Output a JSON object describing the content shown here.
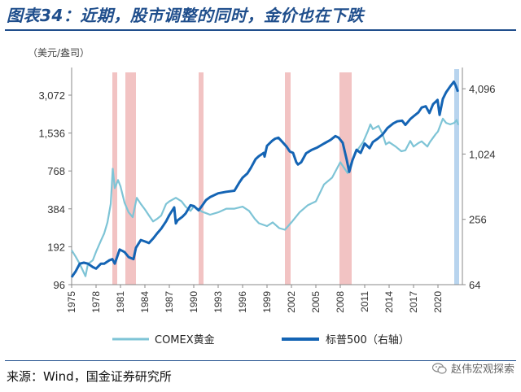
{
  "page": {
    "title": "图表34：近期，股市调整的同时，金价也在下跌",
    "source": "来源：Wind，国金证券研究所",
    "watermark": "赵伟宏观探索",
    "watermark_icon": "wechat-icon"
  },
  "chart_data": {
    "type": "line",
    "ylabel": "（美元/盎司）",
    "left_axis": {
      "label": "（美元/盎司）",
      "scale": "log2",
      "ticks": [
        96,
        192,
        384,
        768,
        1536,
        3072
      ],
      "tick_labels": [
        "96",
        "192",
        "384",
        "768",
        "1,536",
        "3,072"
      ],
      "range": [
        96,
        4800
      ]
    },
    "right_axis": {
      "scale": "log2",
      "ticks": [
        64,
        256,
        1024,
        4096
      ],
      "tick_labels": [
        "64",
        "256",
        "1,024",
        "4,096"
      ],
      "range": [
        64,
        6000
      ]
    },
    "x_axis": {
      "range": [
        1975,
        2023
      ],
      "ticks": [
        1975,
        1978,
        1981,
        1984,
        1987,
        1990,
        1993,
        1996,
        1999,
        2002,
        2005,
        2008,
        2011,
        2014,
        2017,
        2020
      ],
      "tick_labels": [
        "1975",
        "1978",
        "1981",
        "1984",
        "1987",
        "1990",
        "1993",
        "1996",
        "1999",
        "2002",
        "2005",
        "2008",
        "2011",
        "2014",
        "2017",
        "2020"
      ]
    },
    "recession_bands": [
      [
        1980.0,
        1980.6
      ],
      [
        1981.6,
        1982.9
      ],
      [
        1990.6,
        1991.2
      ],
      [
        2001.2,
        2001.9
      ],
      [
        2007.9,
        2009.4
      ]
    ],
    "recent_band": [
      2022.0,
      2022.6
    ],
    "colors": {
      "gold": "#7ec4d6",
      "spx": "#1464b4",
      "recession": "#f2c3c3",
      "recent": "#b8d4ee"
    },
    "legend_position": "bottom",
    "series": [
      {
        "name": "COMEX黄金",
        "axis": "left",
        "points": [
          [
            1975.0,
            180
          ],
          [
            1975.5,
            160
          ],
          [
            1976.0,
            140
          ],
          [
            1976.7,
            112
          ],
          [
            1977.0,
            140
          ],
          [
            1977.6,
            150
          ],
          [
            1978.0,
            175
          ],
          [
            1978.6,
            215
          ],
          [
            1979.0,
            245
          ],
          [
            1979.4,
            300
          ],
          [
            1979.8,
            420
          ],
          [
            1980.05,
            800
          ],
          [
            1980.3,
            560
          ],
          [
            1980.7,
            650
          ],
          [
            1981.0,
            580
          ],
          [
            1981.5,
            430
          ],
          [
            1982.0,
            360
          ],
          [
            1982.5,
            330
          ],
          [
            1983.0,
            470
          ],
          [
            1983.5,
            420
          ],
          [
            1984.0,
            380
          ],
          [
            1984.5,
            340
          ],
          [
            1985.0,
            305
          ],
          [
            1985.5,
            320
          ],
          [
            1986.0,
            340
          ],
          [
            1986.6,
            420
          ],
          [
            1987.0,
            440
          ],
          [
            1987.8,
            470
          ],
          [
            1988.5,
            440
          ],
          [
            1989.0,
            400
          ],
          [
            1989.6,
            370
          ],
          [
            1990.0,
            400
          ],
          [
            1990.6,
            380
          ],
          [
            1991.0,
            365
          ],
          [
            1992.0,
            345
          ],
          [
            1993.0,
            360
          ],
          [
            1994.0,
            385
          ],
          [
            1995.0,
            385
          ],
          [
            1996.0,
            400
          ],
          [
            1996.8,
            370
          ],
          [
            1997.5,
            320
          ],
          [
            1998.0,
            295
          ],
          [
            1999.0,
            280
          ],
          [
            1999.7,
            300
          ],
          [
            2000.5,
            270
          ],
          [
            2001.2,
            262
          ],
          [
            2002.0,
            300
          ],
          [
            2003.0,
            360
          ],
          [
            2004.0,
            410
          ],
          [
            2005.0,
            440
          ],
          [
            2006.0,
            600
          ],
          [
            2007.0,
            680
          ],
          [
            2008.0,
            900
          ],
          [
            2008.9,
            740
          ],
          [
            2009.5,
            950
          ],
          [
            2010.0,
            1100
          ],
          [
            2010.8,
            1300
          ],
          [
            2011.4,
            1600
          ],
          [
            2011.7,
            1800
          ],
          [
            2012.0,
            1650
          ],
          [
            2012.7,
            1750
          ],
          [
            2013.2,
            1500
          ],
          [
            2013.6,
            1250
          ],
          [
            2014.0,
            1300
          ],
          [
            2014.8,
            1200
          ],
          [
            2015.5,
            1100
          ],
          [
            2016.0,
            1120
          ],
          [
            2016.6,
            1330
          ],
          [
            2017.0,
            1200
          ],
          [
            2017.6,
            1280
          ],
          [
            2018.0,
            1320
          ],
          [
            2018.7,
            1200
          ],
          [
            2019.0,
            1300
          ],
          [
            2019.7,
            1500
          ],
          [
            2020.0,
            1580
          ],
          [
            2020.6,
            2000
          ],
          [
            2021.0,
            1850
          ],
          [
            2021.5,
            1800
          ],
          [
            2022.0,
            1850
          ],
          [
            2022.3,
            1950
          ],
          [
            2022.5,
            1780
          ]
        ]
      },
      {
        "name": "标普500（右轴）",
        "axis": "right",
        "points": [
          [
            1975.0,
            75
          ],
          [
            1975.5,
            85
          ],
          [
            1976.0,
            100
          ],
          [
            1976.5,
            102
          ],
          [
            1977.0,
            100
          ],
          [
            1977.6,
            93
          ],
          [
            1978.0,
            90
          ],
          [
            1978.6,
            100
          ],
          [
            1979.0,
            100
          ],
          [
            1979.6,
            107
          ],
          [
            1980.0,
            110
          ],
          [
            1980.3,
            100
          ],
          [
            1980.9,
            135
          ],
          [
            1981.5,
            128
          ],
          [
            1982.0,
            115
          ],
          [
            1982.6,
            110
          ],
          [
            1982.9,
            140
          ],
          [
            1983.5,
            165
          ],
          [
            1984.0,
            160
          ],
          [
            1984.5,
            155
          ],
          [
            1985.0,
            170
          ],
          [
            1985.5,
            190
          ],
          [
            1986.0,
            210
          ],
          [
            1986.6,
            245
          ],
          [
            1987.0,
            280
          ],
          [
            1987.6,
            330
          ],
          [
            1987.8,
            235
          ],
          [
            1988.0,
            250
          ],
          [
            1988.6,
            270
          ],
          [
            1989.0,
            290
          ],
          [
            1989.6,
            345
          ],
          [
            1990.0,
            340
          ],
          [
            1990.6,
            310
          ],
          [
            1991.0,
            340
          ],
          [
            1991.5,
            385
          ],
          [
            1992.0,
            410
          ],
          [
            1993.0,
            445
          ],
          [
            1994.0,
            460
          ],
          [
            1995.0,
            470
          ],
          [
            1995.6,
            560
          ],
          [
            1996.0,
            620
          ],
          [
            1996.6,
            680
          ],
          [
            1997.0,
            760
          ],
          [
            1997.6,
            920
          ],
          [
            1998.0,
            980
          ],
          [
            1998.6,
            1050
          ],
          [
            1998.7,
            970
          ],
          [
            1999.0,
            1220
          ],
          [
            1999.6,
            1350
          ],
          [
            2000.0,
            1420
          ],
          [
            2000.4,
            1450
          ],
          [
            2000.9,
            1320
          ],
          [
            2001.4,
            1200
          ],
          [
            2001.8,
            1080
          ],
          [
            2002.2,
            1050
          ],
          [
            2002.6,
            860
          ],
          [
            2002.8,
            820
          ],
          [
            2003.2,
            860
          ],
          [
            2003.8,
            1040
          ],
          [
            2004.5,
            1120
          ],
          [
            2005.2,
            1180
          ],
          [
            2006.0,
            1280
          ],
          [
            2006.8,
            1380
          ],
          [
            2007.4,
            1500
          ],
          [
            2007.8,
            1450
          ],
          [
            2008.3,
            1300
          ],
          [
            2008.8,
            900
          ],
          [
            2009.1,
            700
          ],
          [
            2009.5,
            900
          ],
          [
            2010.0,
            1120
          ],
          [
            2010.5,
            1050
          ],
          [
            2011.0,
            1280
          ],
          [
            2011.6,
            1160
          ],
          [
            2012.0,
            1320
          ],
          [
            2012.6,
            1420
          ],
          [
            2013.2,
            1550
          ],
          [
            2013.8,
            1780
          ],
          [
            2014.5,
            1960
          ],
          [
            2015.0,
            2050
          ],
          [
            2015.6,
            2080
          ],
          [
            2016.0,
            1900
          ],
          [
            2016.6,
            2150
          ],
          [
            2017.0,
            2280
          ],
          [
            2017.6,
            2480
          ],
          [
            2018.0,
            2750
          ],
          [
            2018.5,
            2820
          ],
          [
            2018.95,
            2450
          ],
          [
            2019.4,
            2950
          ],
          [
            2019.95,
            3230
          ],
          [
            2020.2,
            2350
          ],
          [
            2020.6,
            3300
          ],
          [
            2021.0,
            3800
          ],
          [
            2021.5,
            4300
          ],
          [
            2021.95,
            4750
          ],
          [
            2022.2,
            4350
          ],
          [
            2022.45,
            3850
          ]
        ]
      }
    ]
  }
}
